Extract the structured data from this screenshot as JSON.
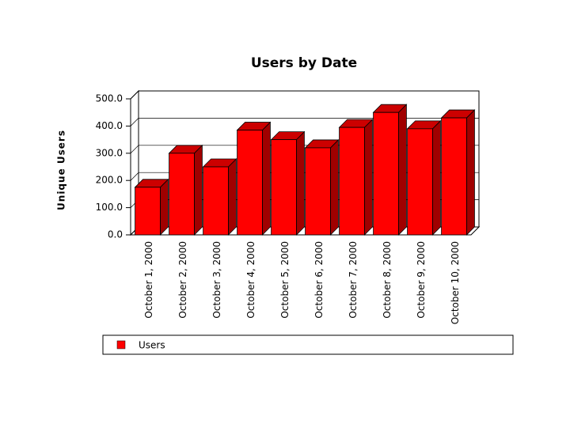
{
  "chart_data": {
    "type": "bar",
    "title": "Users by Date",
    "y_label": "Unique Users",
    "categories": [
      "October 1, 2000",
      "October 2, 2000",
      "October 3, 2000",
      "October 4, 2000",
      "October 5, 2000",
      "October 6, 2000",
      "October 7, 2000",
      "October 8, 2000",
      "October 9, 2000",
      "October 10, 2000"
    ],
    "series": [
      {
        "name": "Users",
        "color": "#ff0000",
        "values": [
          175,
          300,
          250,
          385,
          350,
          320,
          395,
          450,
          390,
          430
        ]
      }
    ],
    "ylim": [
      0,
      500
    ],
    "yticks": [
      {
        "value": 0,
        "label": "0.0"
      },
      {
        "value": 100,
        "label": "100.0"
      },
      {
        "value": 200,
        "label": "200.0"
      },
      {
        "value": 300,
        "label": "300.0"
      },
      {
        "value": 400,
        "label": "400.0"
      },
      {
        "value": 500,
        "label": "500.0"
      }
    ],
    "grid": true,
    "legend": "bottom"
  }
}
